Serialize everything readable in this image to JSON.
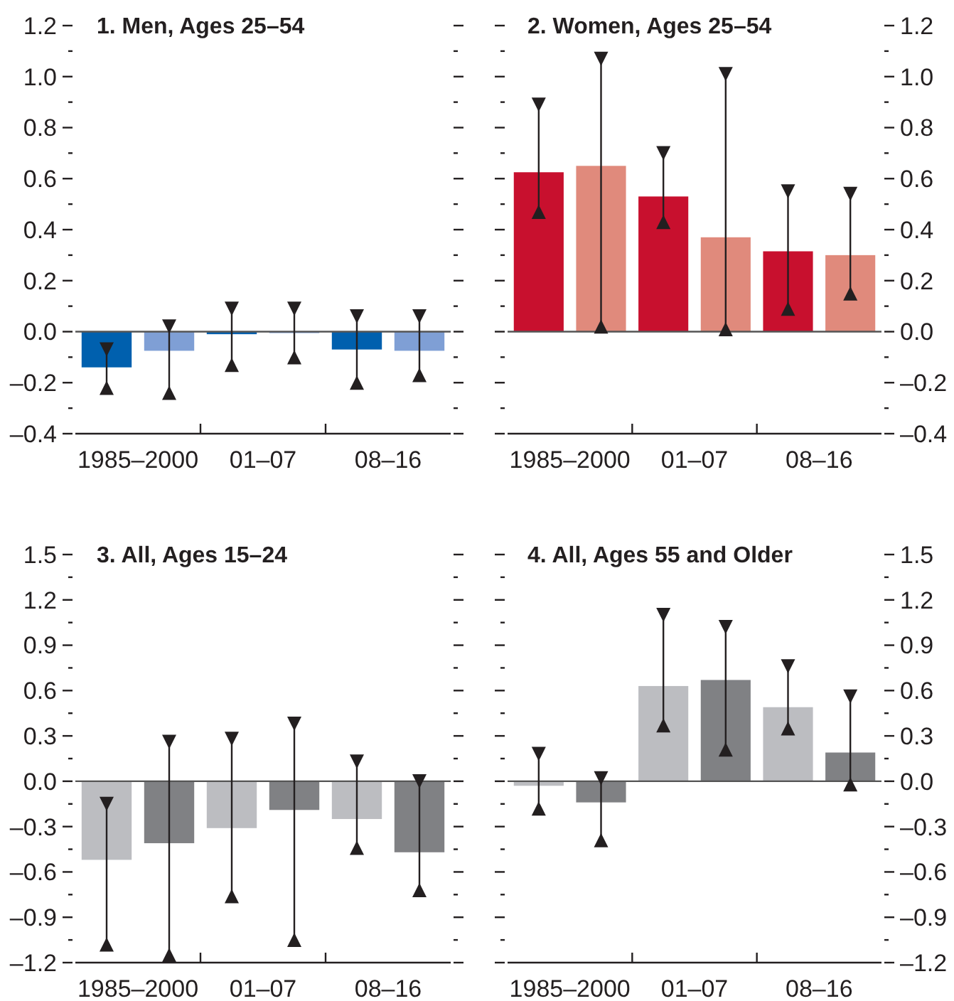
{
  "chart_data": [
    {
      "type": "bar",
      "title": "1. Men, Ages 25–54",
      "categories": [
        "1985–2000",
        "01–07",
        "08–16"
      ],
      "series": [
        {
          "color": "#0060ae",
          "values": [
            -0.14,
            -0.01,
            -0.07
          ],
          "errors": [
            [
              -0.22,
              -0.07
            ],
            [
              -0.13,
              0.09
            ],
            [
              -0.2,
              0.06
            ]
          ]
        },
        {
          "color": "#7f9fd5",
          "values": [
            -0.075,
            0,
            -0.075
          ],
          "errors": [
            [
              -0.24,
              0.02
            ],
            [
              -0.1,
              0.09
            ],
            [
              -0.17,
              0.06
            ]
          ]
        }
      ],
      "ylim": [
        -0.4,
        1.2
      ],
      "yticks": [
        {
          "value": -0.4,
          "label": "–0.4"
        },
        {
          "value": -0.3,
          "label": null
        },
        {
          "value": -0.2,
          "label": "–0.2"
        },
        {
          "value": -0.1,
          "label": null
        },
        {
          "value": 0,
          "label": "0.0"
        },
        {
          "value": 0.1,
          "label": null
        },
        {
          "value": 0.2,
          "label": "0.2"
        },
        {
          "value": 0.3,
          "label": null
        },
        {
          "value": 0.4,
          "label": "0.4"
        },
        {
          "value": 0.5,
          "label": null
        },
        {
          "value": 0.6,
          "label": "0.6"
        },
        {
          "value": 0.7,
          "label": null
        },
        {
          "value": 0.8,
          "label": "0.8"
        },
        {
          "value": 0.9,
          "label": null
        },
        {
          "value": 1.0,
          "label": "1.0"
        },
        {
          "value": 1.1,
          "label": null
        },
        {
          "value": 1.2,
          "label": "1.2"
        }
      ]
    },
    {
      "type": "bar",
      "title": "2. Women, Ages 25–54",
      "categories": [
        "1985–2000",
        "01–07",
        "08–16"
      ],
      "series": [
        {
          "color": "#c8102e",
          "axis": "y2",
          "values": [
            0.625,
            0.53,
            0.315
          ],
          "errors": [
            [
              0.47,
              0.89
            ],
            [
              0.43,
              0.7
            ],
            [
              0.09,
              0.55
            ]
          ]
        },
        {
          "color": "#e08a7c",
          "axis": "y2",
          "values": [
            0.65,
            0.37,
            0.3
          ],
          "errors": [
            [
              0.02,
              1.07
            ],
            [
              0.01,
              1.01
            ],
            [
              0.15,
              0.54
            ]
          ]
        }
      ],
      "y2lim": [
        -0.4,
        1.2
      ],
      "y2ticks": [
        {
          "value": -0.4,
          "label": "–0.4"
        },
        {
          "value": -0.3,
          "label": null
        },
        {
          "value": -0.2,
          "label": "–0.2"
        },
        {
          "value": -0.1,
          "label": null
        },
        {
          "value": 0,
          "label": "0.0"
        },
        {
          "value": 0.1,
          "label": null
        },
        {
          "value": 0.2,
          "label": "0.2"
        },
        {
          "value": 0.3,
          "label": null
        },
        {
          "value": 0.4,
          "label": "0.4"
        },
        {
          "value": 0.5,
          "label": null
        },
        {
          "value": 0.6,
          "label": "0.6"
        },
        {
          "value": 0.7,
          "label": null
        },
        {
          "value": 0.8,
          "label": "0.8"
        },
        {
          "value": 0.9,
          "label": null
        },
        {
          "value": 1.0,
          "label": "1.0"
        },
        {
          "value": 1.1,
          "label": null
        },
        {
          "value": 1.2,
          "label": "1.2"
        }
      ]
    },
    {
      "type": "bar",
      "title": "3. All, Ages 15–24",
      "categories": [
        "1985–2000",
        "01–07",
        "08–16"
      ],
      "series": [
        {
          "color": "#bcbdc1",
          "values": [
            -0.52,
            -0.31,
            -0.25
          ],
          "errors": [
            [
              -1.08,
              -0.15
            ],
            [
              -0.76,
              0.28
            ],
            [
              -0.44,
              0.13
            ]
          ]
        },
        {
          "color": "#808184",
          "values": [
            -0.41,
            -0.19,
            -0.47
          ],
          "errors": [
            [
              -1.15,
              0.26
            ],
            [
              -1.05,
              0.38
            ],
            [
              -0.72,
              0
            ]
          ]
        }
      ],
      "ylim": [
        -1.2,
        1.5
      ],
      "yticks": [
        {
          "value": -1.2,
          "label": "–1.2"
        },
        {
          "value": -1.05,
          "label": null
        },
        {
          "value": -0.9,
          "label": "–0.9"
        },
        {
          "value": -0.75,
          "label": null
        },
        {
          "value": -0.6,
          "label": "–0.6"
        },
        {
          "value": -0.45,
          "label": null
        },
        {
          "value": -0.3,
          "label": "–0.3"
        },
        {
          "value": -0.15,
          "label": null
        },
        {
          "value": 0,
          "label": "0.0"
        },
        {
          "value": 0.15,
          "label": null
        },
        {
          "value": 0.3,
          "label": "0.3"
        },
        {
          "value": 0.45,
          "label": null
        },
        {
          "value": 0.6,
          "label": "0.6"
        },
        {
          "value": 0.75,
          "label": null
        },
        {
          "value": 0.9,
          "label": "0.9"
        },
        {
          "value": 1.05,
          "label": null
        },
        {
          "value": 1.2,
          "label": "1.2"
        },
        {
          "value": 1.35,
          "label": null
        },
        {
          "value": 1.5,
          "label": "1.5"
        }
      ]
    },
    {
      "type": "bar",
      "title": "4. All, Ages 55 and Older",
      "categories": [
        "1985–2000",
        "01–07",
        "08–16"
      ],
      "series": [
        {
          "color": "#bcbdc1",
          "axis": "y2",
          "values": [
            -0.03,
            0.63,
            0.49
          ],
          "errors": [
            [
              -0.18,
              0.18
            ],
            [
              0.37,
              1.1
            ],
            [
              0.35,
              0.76
            ]
          ]
        },
        {
          "color": "#808184",
          "axis": "y2",
          "values": [
            -0.14,
            0.67,
            0.19
          ],
          "errors": [
            [
              -0.39,
              0.02
            ],
            [
              0.21,
              1.02
            ],
            [
              -0.02,
              0.56
            ]
          ]
        }
      ],
      "y2lim": [
        -1.2,
        1.5
      ],
      "y2ticks": [
        {
          "value": -1.2,
          "label": "–1.2"
        },
        {
          "value": -1.05,
          "label": null
        },
        {
          "value": -0.9,
          "label": "–0.9"
        },
        {
          "value": -0.75,
          "label": null
        },
        {
          "value": -0.6,
          "label": "–0.6"
        },
        {
          "value": -0.45,
          "label": null
        },
        {
          "value": -0.3,
          "label": "–0.3"
        },
        {
          "value": -0.15,
          "label": null
        },
        {
          "value": 0,
          "label": "0.0"
        },
        {
          "value": 0.15,
          "label": null
        },
        {
          "value": 0.3,
          "label": "0.3"
        },
        {
          "value": 0.45,
          "label": null
        },
        {
          "value": 0.6,
          "label": "0.6"
        },
        {
          "value": 0.75,
          "label": null
        },
        {
          "value": 0.9,
          "label": "0.9"
        },
        {
          "value": 1.05,
          "label": null
        },
        {
          "value": 1.2,
          "label": "1.2"
        },
        {
          "value": 1.35,
          "label": null
        },
        {
          "value": 1.5,
          "label": "1.5"
        }
      ]
    }
  ]
}
